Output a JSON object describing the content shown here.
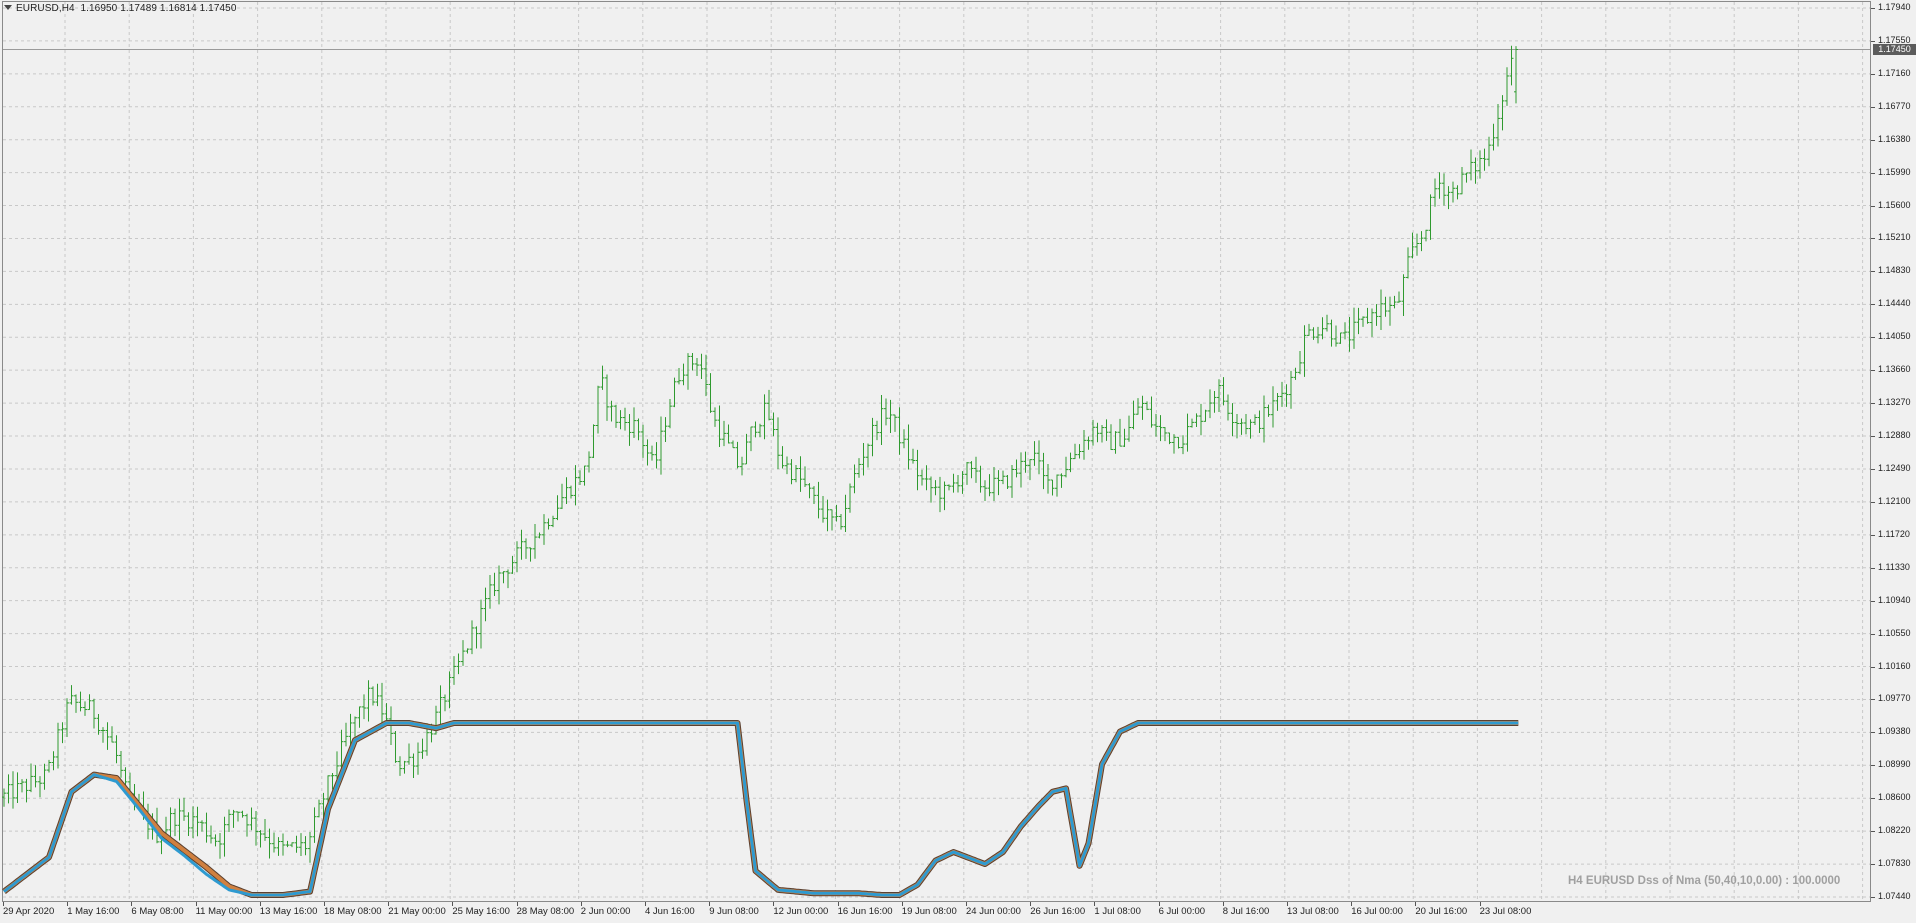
{
  "header": {
    "symbol": "EURUSD,H4",
    "ohlc": "1.16950 1.17489 1.16814 1.17450"
  },
  "current_price": "1.17450",
  "indicator_label": "H4 EURUSD Dss of Nma (50,40,10,0.00) : 100.0000",
  "colors": {
    "background": "#f0f0f0",
    "grid": "#c8c8c8",
    "bars": "#2f9a2f",
    "indicator_main": "#2e9ad0",
    "indicator_signal": "#d08040",
    "indicator_outline": "#5a4030"
  },
  "chart_data": {
    "type": "ohlc-bars",
    "symbol": "EURUSD",
    "timeframe": "H4",
    "last_bar": {
      "open": 1.1695,
      "high": 1.17489,
      "low": 1.16814,
      "close": 1.1745
    },
    "price_axis": {
      "ticks": [
        "1.17940",
        "1.17550",
        "1.17160",
        "1.16770",
        "1.16380",
        "1.15990",
        "1.15600",
        "1.15210",
        "1.14830",
        "1.14440",
        "1.14050",
        "1.13660",
        "1.13270",
        "1.12880",
        "1.12490",
        "1.12100",
        "1.11720",
        "1.11330",
        "1.10940",
        "1.10550",
        "1.10160",
        "1.09770",
        "1.09380",
        "1.08990",
        "1.08600",
        "1.08220",
        "1.07830",
        "1.07440"
      ],
      "ylim": [
        1.0744,
        1.1794
      ]
    },
    "time_axis": {
      "labels": [
        "29 Apr 2020",
        "1 May 16:00",
        "6 May 08:00",
        "11 May 00:00",
        "13 May 16:00",
        "18 May 08:00",
        "21 May 00:00",
        "25 May 16:00",
        "28 May 08:00",
        "2 Jun 00:00",
        "4 Jun 16:00",
        "9 Jun 08:00",
        "12 Jun 00:00",
        "16 Jun 16:00",
        "19 Jun 08:00",
        "24 Jun 00:00",
        "26 Jun 16:00",
        "1 Jul 08:00",
        "6 Jul 00:00",
        "8 Jul 16:00",
        "13 Jul 08:00",
        "16 Jul 00:00",
        "20 Jul 16:00",
        "23 Jul 08:00"
      ]
    },
    "price_path_knots": [
      [
        0,
        1.0862
      ],
      [
        10,
        1.0887
      ],
      [
        15,
        1.0975
      ],
      [
        20,
        1.0965
      ],
      [
        25,
        1.092
      ],
      [
        28,
        1.086
      ],
      [
        35,
        1.0815
      ],
      [
        38,
        1.084
      ],
      [
        43,
        1.0835
      ],
      [
        48,
        1.081
      ],
      [
        52,
        1.085
      ],
      [
        56,
        1.083
      ],
      [
        62,
        1.08
      ],
      [
        68,
        1.0805
      ],
      [
        72,
        1.087
      ],
      [
        78,
        1.095
      ],
      [
        82,
        1.0985
      ],
      [
        85,
        1.096
      ],
      [
        88,
        1.09
      ],
      [
        92,
        1.091
      ],
      [
        96,
        1.095
      ],
      [
        100,
        1.1
      ],
      [
        105,
        1.106
      ],
      [
        110,
        1.112
      ],
      [
        115,
        1.115
      ],
      [
        120,
        1.118
      ],
      [
        125,
        1.122
      ],
      [
        130,
        1.125
      ],
      [
        133,
        1.1355
      ],
      [
        136,
        1.131
      ],
      [
        141,
        1.13
      ],
      [
        145,
        1.125
      ],
      [
        148,
        1.132
      ],
      [
        151,
        1.137
      ],
      [
        155,
        1.138
      ],
      [
        158,
        1.131
      ],
      [
        161,
        1.128
      ],
      [
        164,
        1.125
      ],
      [
        167,
        1.13
      ],
      [
        170,
        1.132
      ],
      [
        173,
        1.126
      ],
      [
        177,
        1.124
      ],
      [
        182,
        1.12
      ],
      [
        186,
        1.118
      ],
      [
        190,
        1.125
      ],
      [
        194,
        1.13
      ],
      [
        197,
        1.132
      ],
      [
        201,
        1.127
      ],
      [
        205,
        1.123
      ],
      [
        210,
        1.122
      ],
      [
        214,
        1.125
      ],
      [
        218,
        1.123
      ],
      [
        222,
        1.123
      ],
      [
        226,
        1.125
      ],
      [
        229,
        1.127
      ],
      [
        232,
        1.123
      ],
      [
        236,
        1.125
      ],
      [
        240,
        1.128
      ],
      [
        243,
        1.13
      ],
      [
        246,
        1.128
      ],
      [
        250,
        1.129
      ],
      [
        253,
        1.133
      ],
      [
        256,
        1.13
      ],
      [
        259,
        1.129
      ],
      [
        262,
        1.1285
      ],
      [
        266,
        1.131
      ],
      [
        270,
        1.1345
      ],
      [
        274,
        1.131
      ],
      [
        278,
        1.13
      ],
      [
        282,
        1.132
      ],
      [
        287,
        1.136
      ],
      [
        290,
        1.141
      ],
      [
        294,
        1.142
      ],
      [
        298,
        1.14
      ],
      [
        302,
        1.142
      ],
      [
        306,
        1.144
      ],
      [
        310,
        1.144
      ],
      [
        313,
        1.15
      ],
      [
        316,
        1.153
      ],
      [
        319,
        1.159
      ],
      [
        322,
        1.1575
      ],
      [
        326,
        1.16
      ],
      [
        330,
        1.162
      ],
      [
        333,
        1.168
      ],
      [
        336,
        1.1745
      ]
    ],
    "indicator": {
      "name": "Dss of Nma (50,40,10,0.00)",
      "ylim": [
        0,
        100
      ],
      "last_value": 100.0,
      "series": [
        {
          "role": "main",
          "knots": [
            [
              0,
              2
            ],
            [
              10,
              22
            ],
            [
              15,
              60
            ],
            [
              20,
              70
            ],
            [
              25,
              66
            ],
            [
              30,
              50
            ],
            [
              35,
              33
            ],
            [
              40,
              23
            ],
            [
              45,
              12
            ],
            [
              50,
              3
            ],
            [
              55,
              0
            ],
            [
              62,
              0
            ],
            [
              68,
              2
            ],
            [
              72,
              50
            ],
            [
              78,
              90
            ],
            [
              85,
              100
            ],
            [
              90,
              100
            ],
            [
              96,
              97
            ],
            [
              100,
              100
            ],
            [
              110,
              100
            ],
            [
              120,
              100
            ],
            [
              130,
              100
            ],
            [
              140,
              100
            ],
            [
              160,
              100
            ],
            [
              163,
              100
            ],
            [
              165,
              55
            ],
            [
              167,
              14
            ],
            [
              172,
              3
            ],
            [
              180,
              1
            ],
            [
              190,
              1
            ],
            [
              195,
              0
            ],
            [
              199,
              0
            ],
            [
              203,
              6
            ],
            [
              207,
              20
            ],
            [
              211,
              25
            ],
            [
              215,
              21
            ],
            [
              218,
              18
            ],
            [
              222,
              25
            ],
            [
              226,
              40
            ],
            [
              230,
              52
            ],
            [
              233,
              60
            ],
            [
              236,
              62
            ],
            [
              239,
              17
            ],
            [
              241,
              30
            ],
            [
              244,
              76
            ],
            [
              248,
              95
            ],
            [
              252,
              100
            ],
            [
              258,
              100
            ],
            [
              264,
              100
            ],
            [
              275,
              100
            ],
            [
              300,
              100
            ],
            [
              320,
              100
            ],
            [
              336,
              100
            ]
          ]
        },
        {
          "role": "signal",
          "knots": [
            [
              0,
              2
            ],
            [
              10,
              22
            ],
            [
              15,
              60
            ],
            [
              20,
              70
            ],
            [
              25,
              68
            ],
            [
              30,
              52
            ],
            [
              35,
              36
            ],
            [
              40,
              26
            ],
            [
              45,
              16
            ],
            [
              50,
              5
            ],
            [
              55,
              0
            ],
            [
              62,
              0
            ],
            [
              68,
              2
            ],
            [
              72,
              50
            ],
            [
              78,
              90
            ],
            [
              85,
              100
            ],
            [
              90,
              100
            ],
            [
              96,
              97
            ],
            [
              100,
              100
            ],
            [
              110,
              100
            ],
            [
              120,
              100
            ],
            [
              130,
              100
            ],
            [
              140,
              100
            ],
            [
              160,
              100
            ],
            [
              163,
              100
            ],
            [
              165,
              55
            ],
            [
              167,
              14
            ],
            [
              172,
              3
            ],
            [
              180,
              1
            ],
            [
              190,
              1
            ],
            [
              195,
              0
            ],
            [
              199,
              0
            ],
            [
              203,
              6
            ],
            [
              207,
              20
            ],
            [
              211,
              25
            ],
            [
              215,
              21
            ],
            [
              218,
              18
            ],
            [
              222,
              25
            ],
            [
              226,
              40
            ],
            [
              230,
              52
            ],
            [
              233,
              60
            ],
            [
              236,
              62
            ],
            [
              239,
              17
            ],
            [
              241,
              30
            ],
            [
              244,
              76
            ],
            [
              248,
              95
            ],
            [
              252,
              100
            ],
            [
              258,
              100
            ],
            [
              264,
              100
            ],
            [
              275,
              100
            ],
            [
              300,
              100
            ],
            [
              320,
              100
            ],
            [
              336,
              100
            ]
          ]
        }
      ]
    }
  }
}
